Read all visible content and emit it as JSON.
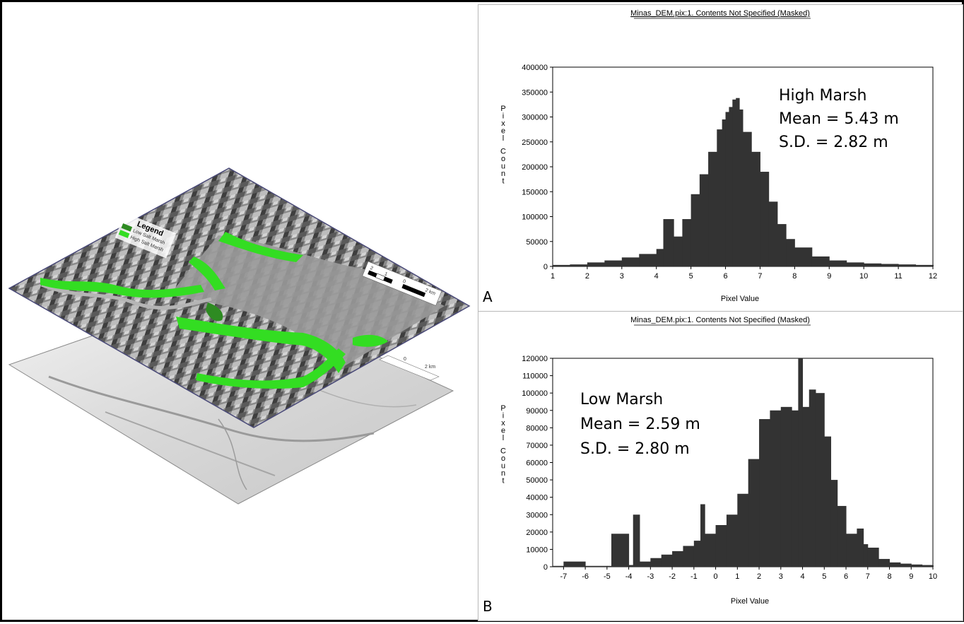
{
  "colors": {
    "bar": "#333333",
    "marsh_green": "#33dd22",
    "marsh_dark": "#2e8b22",
    "frame": "#000000"
  },
  "map": {
    "legend_title": "Legend",
    "legend_items": [
      "Low Salt Marsh",
      "High Salt Marsh"
    ],
    "scale_labels_top": [
      "2",
      "1",
      "0",
      "2 km"
    ],
    "scale_labels_bottom": [
      "0",
      "2 km"
    ]
  },
  "chart_data": [
    {
      "panel": "A",
      "type": "bar",
      "title": "Minas_DEM.pix:1. Contents Not Specified (Masked)",
      "xlabel": "Pixel Value",
      "ylabel": "Pixel Count",
      "xlim": [
        1,
        12
      ],
      "ylim": [
        0,
        400000
      ],
      "x_ticks": [
        1,
        2,
        3,
        4,
        5,
        6,
        7,
        8,
        9,
        10,
        11,
        12
      ],
      "y_ticks": [
        0,
        50000,
        100000,
        150000,
        200000,
        250000,
        300000,
        350000,
        400000
      ],
      "annotations": [
        "High Marsh",
        "Mean = 5.43 m",
        "S.D. = 2.82 m"
      ],
      "series": [
        {
          "x": [
            1.0,
            1.5,
            2.0,
            2.5,
            3.0,
            3.5,
            4.0,
            4.2,
            4.5,
            4.75,
            5.0,
            5.25,
            5.5,
            5.75,
            5.9,
            6.0,
            6.1,
            6.2,
            6.3,
            6.4,
            6.5,
            6.75,
            7.0,
            7.25,
            7.5,
            7.75,
            8.0,
            8.5,
            9.0,
            9.5,
            10.0,
            10.5,
            11.0,
            11.5,
            12.0
          ],
          "values": [
            3000,
            4000,
            8000,
            12000,
            18000,
            25000,
            35000,
            95000,
            60000,
            95000,
            145000,
            185000,
            230000,
            275000,
            295000,
            310000,
            320000,
            335000,
            338000,
            315000,
            270000,
            230000,
            190000,
            130000,
            85000,
            55000,
            38000,
            20000,
            12000,
            8000,
            6000,
            5000,
            4000,
            3000,
            3000
          ]
        }
      ]
    },
    {
      "panel": "B",
      "type": "bar",
      "title": "Minas_DEM.pix:1. Contents Not Specified (Masked)",
      "xlabel": "Pixel Value",
      "ylabel": "Pixel Count",
      "xlim": [
        -7.5,
        10
      ],
      "ylim": [
        0,
        120000
      ],
      "x_ticks": [
        -7,
        -6,
        -5,
        -4,
        -3,
        -2,
        -1,
        0,
        1,
        2,
        3,
        4,
        5,
        6,
        7,
        8,
        9,
        10
      ],
      "y_ticks": [
        0,
        10000,
        20000,
        30000,
        40000,
        50000,
        60000,
        70000,
        80000,
        90000,
        100000,
        110000,
        120000
      ],
      "annotations": [
        "Low Marsh",
        "Mean = 2.59 m",
        "S.D. = 2.80 m"
      ],
      "series": [
        {
          "x": [
            -7.5,
            -7.0,
            -6.0,
            -5.0,
            -4.8,
            -4.0,
            -3.8,
            -3.5,
            -3.0,
            -2.5,
            -2.0,
            -1.5,
            -1.0,
            -0.7,
            -0.5,
            0.0,
            0.5,
            1.0,
            1.5,
            2.0,
            2.5,
            3.0,
            3.5,
            3.8,
            4.0,
            4.3,
            4.6,
            5.0,
            5.3,
            5.6,
            6.0,
            6.5,
            6.8,
            7.0,
            7.5,
            8.0,
            8.5,
            9.0,
            9.5,
            10.0
          ],
          "values": [
            500,
            3000,
            500,
            500,
            19000,
            1000,
            30000,
            3000,
            5000,
            7000,
            9000,
            12000,
            15000,
            36000,
            19000,
            24000,
            30000,
            42000,
            62000,
            85000,
            90000,
            92000,
            90000,
            120000,
            92000,
            102000,
            100000,
            75000,
            50000,
            35000,
            19000,
            22000,
            13000,
            11000,
            4500,
            2500,
            1800,
            1300,
            1000,
            800
          ]
        }
      ]
    }
  ]
}
